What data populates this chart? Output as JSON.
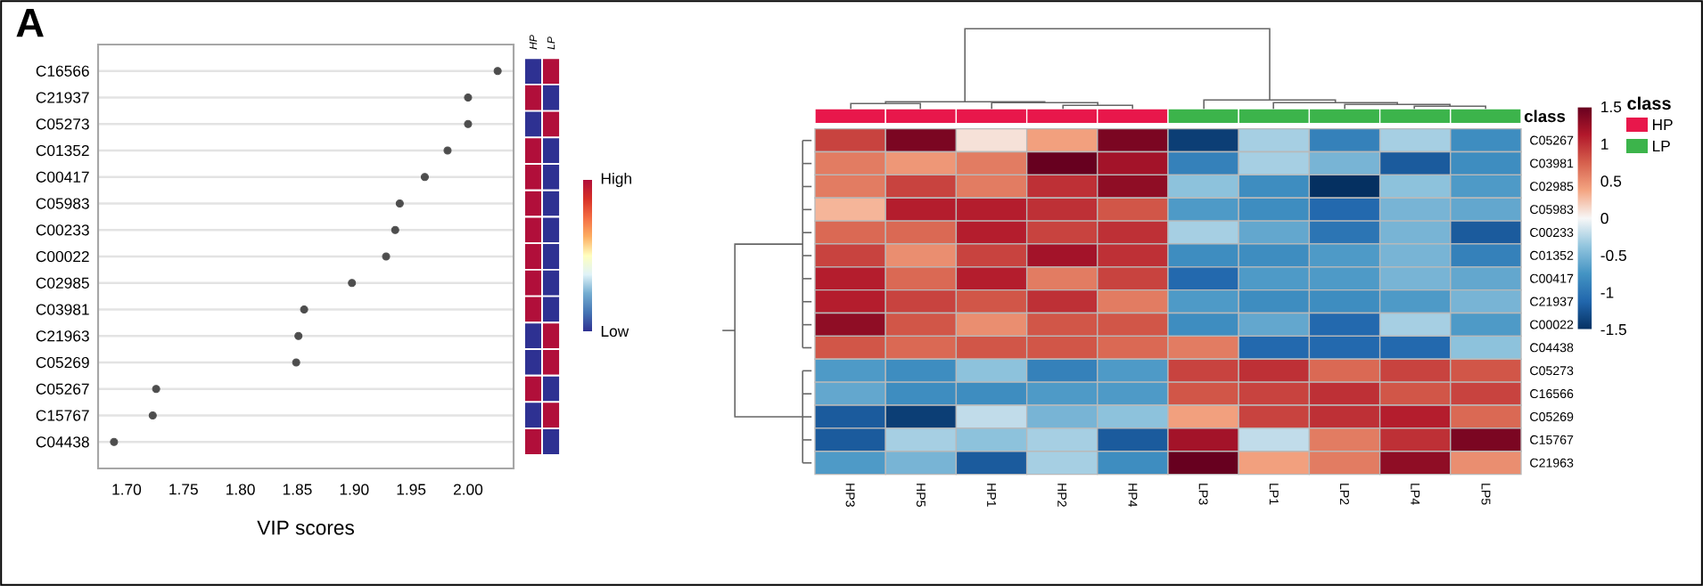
{
  "chart_data": [
    {
      "type": "scatter",
      "orientation": "horizontal",
      "xlabel": "VIP scores",
      "annotations": [
        "A"
      ],
      "marker": "circle",
      "color": "#4d4d4d",
      "grid": "y",
      "categories": [
        "C16566",
        "C21937",
        "C05273",
        "C01352",
        "C00417",
        "C05983",
        "C00233",
        "C00022",
        "C02985",
        "C03981",
        "C21963",
        "C05269",
        "C05267",
        "C15767",
        "C04438"
      ],
      "values": [
        2.026,
        2.0,
        2.0,
        1.982,
        1.962,
        1.94,
        1.936,
        1.928,
        1.898,
        1.856,
        1.851,
        1.849,
        1.726,
        1.723,
        1.689
      ],
      "xlim": [
        1.675,
        2.04
      ],
      "xticks": [
        {
          "value": 1.7,
          "label": "1.70"
        },
        1.75,
        {
          "value": 1.8,
          "label": "1.80"
        },
        1.85,
        {
          "value": 1.9,
          "label": "1.90"
        },
        1.95,
        {
          "value": 2.0,
          "label": "2.00"
        }
      ]
    },
    {
      "type": "heatmap",
      "categories": [
        "HP",
        "LP"
      ],
      "y_categories": [
        null,
        null,
        null,
        null,
        null,
        null,
        null,
        null,
        null,
        null,
        null,
        null,
        null,
        null,
        null
      ],
      "cells": [
        [
          0,
          1
        ],
        [
          1,
          0
        ],
        [
          0,
          1
        ],
        [
          1,
          0
        ],
        [
          1,
          0
        ],
        [
          1,
          0
        ],
        [
          1,
          0
        ],
        [
          1,
          0
        ],
        [
          1,
          0
        ],
        [
          1,
          0
        ],
        [
          0,
          1
        ],
        [
          0,
          1
        ],
        [
          1,
          0
        ],
        [
          0,
          1
        ],
        [
          1,
          0
        ]
      ],
      "clim": [
        0,
        1
      ],
      "cticks": [
        {
          "value": 0,
          "label": "Low"
        },
        {
          "value": 1,
          "label": "High"
        }
      ]
    },
    {
      "type": "other",
      "legend_title": "class",
      "categories": [
        "HP",
        "LP"
      ],
      "colors": [
        "#e8174b",
        "#3cb44b"
      ],
      "annotations": [
        "class"
      ]
    },
    {
      "type": "heatmap",
      "categories": [
        "HP3",
        "HP5",
        "HP1",
        "HP2",
        "HP4",
        "LP3",
        "LP1",
        "LP2",
        "LP4",
        "LP5"
      ],
      "y_categories": [
        "C05267",
        "C03981",
        "C02985",
        "C05983",
        "C00233",
        "C01352",
        "C00417",
        "C21937",
        "C00022",
        "C04438",
        "C05273",
        "C16566",
        "C05269",
        "C15767",
        "C21963"
      ],
      "cells": [
        [
          0.9,
          1.4,
          0.1,
          0.4,
          1.4,
          -1.4,
          -0.3,
          -0.9,
          -0.3,
          -0.8
        ],
        [
          0.6,
          0.45,
          0.6,
          1.5,
          1.2,
          -0.9,
          -0.3,
          -0.5,
          -1.2,
          -0.8
        ],
        [
          0.6,
          0.9,
          0.6,
          1.0,
          1.3,
          -0.4,
          -0.8,
          -1.5,
          -0.4,
          -0.7
        ],
        [
          0.3,
          1.1,
          1.1,
          1.0,
          0.8,
          -0.7,
          -0.8,
          -1.1,
          -0.5,
          -0.6
        ],
        [
          0.7,
          0.7,
          1.1,
          0.9,
          1.0,
          -0.3,
          -0.6,
          -1.0,
          -0.5,
          -1.2
        ],
        [
          0.9,
          0.5,
          0.9,
          1.2,
          1.0,
          -0.8,
          -0.8,
          -0.7,
          -0.5,
          -0.9
        ],
        [
          1.1,
          0.7,
          1.1,
          0.6,
          0.9,
          -1.1,
          -0.7,
          -0.7,
          -0.5,
          -0.6
        ],
        [
          1.1,
          0.9,
          0.8,
          1.0,
          0.6,
          -0.7,
          -0.8,
          -0.8,
          -0.7,
          -0.5
        ],
        [
          1.3,
          0.8,
          0.5,
          0.8,
          0.8,
          -0.8,
          -0.6,
          -1.1,
          -0.3,
          -0.7
        ],
        [
          0.8,
          0.7,
          0.8,
          0.8,
          0.7,
          0.6,
          -1.1,
          -1.1,
          -1.1,
          -0.4
        ],
        [
          -0.7,
          -0.8,
          -0.4,
          -0.9,
          -0.7,
          0.9,
          1.0,
          0.7,
          0.9,
          0.8
        ],
        [
          -0.6,
          -0.8,
          -0.8,
          -0.7,
          -0.7,
          0.8,
          0.9,
          1.0,
          0.8,
          0.9
        ],
        [
          -1.2,
          -1.4,
          -0.2,
          -0.5,
          -0.4,
          0.4,
          0.9,
          1.0,
          1.1,
          0.7
        ],
        [
          -1.2,
          -0.3,
          -0.4,
          -0.3,
          -1.2,
          1.2,
          -0.2,
          0.6,
          1.0,
          1.4
        ],
        [
          -0.7,
          -0.5,
          -1.2,
          -0.3,
          -0.8,
          1.5,
          0.4,
          0.6,
          1.3,
          0.5
        ]
      ],
      "clim": [
        -1.5,
        1.5
      ],
      "cticks": [
        1.5,
        1,
        0.5,
        0,
        -0.5,
        -1,
        -1.5
      ]
    }
  ]
}
